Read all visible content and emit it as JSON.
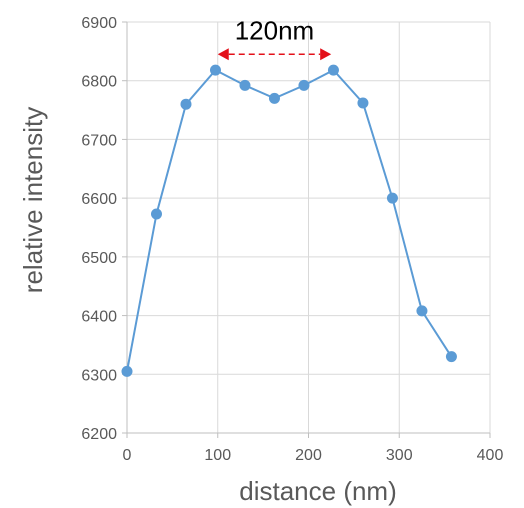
{
  "chart_data": {
    "type": "line",
    "title": "",
    "xlabel": "distance (nm)",
    "ylabel": "relative intensity",
    "xlim": [
      0,
      400
    ],
    "ylim": [
      6200,
      6900
    ],
    "xticks": [
      0,
      100,
      200,
      300,
      400
    ],
    "yticks": [
      6200,
      6300,
      6400,
      6500,
      6600,
      6700,
      6800,
      6900
    ],
    "grid": true,
    "legend": "none",
    "series": [
      {
        "color": "#5b9bd5",
        "x": [
          0,
          32.5,
          65,
          97.5,
          130,
          162.5,
          195,
          227.5,
          260,
          292.5,
          325,
          357.5
        ],
        "y": [
          6305,
          6573,
          6760,
          6818,
          6792,
          6770,
          6792,
          6818,
          6762,
          6600,
          6408,
          6330
        ]
      }
    ],
    "annotation": {
      "text": "120nm",
      "arrow_from_x": 100,
      "arrow_to_x": 225,
      "arrow_y": 6845,
      "arrow_color": "#e3101a"
    }
  }
}
